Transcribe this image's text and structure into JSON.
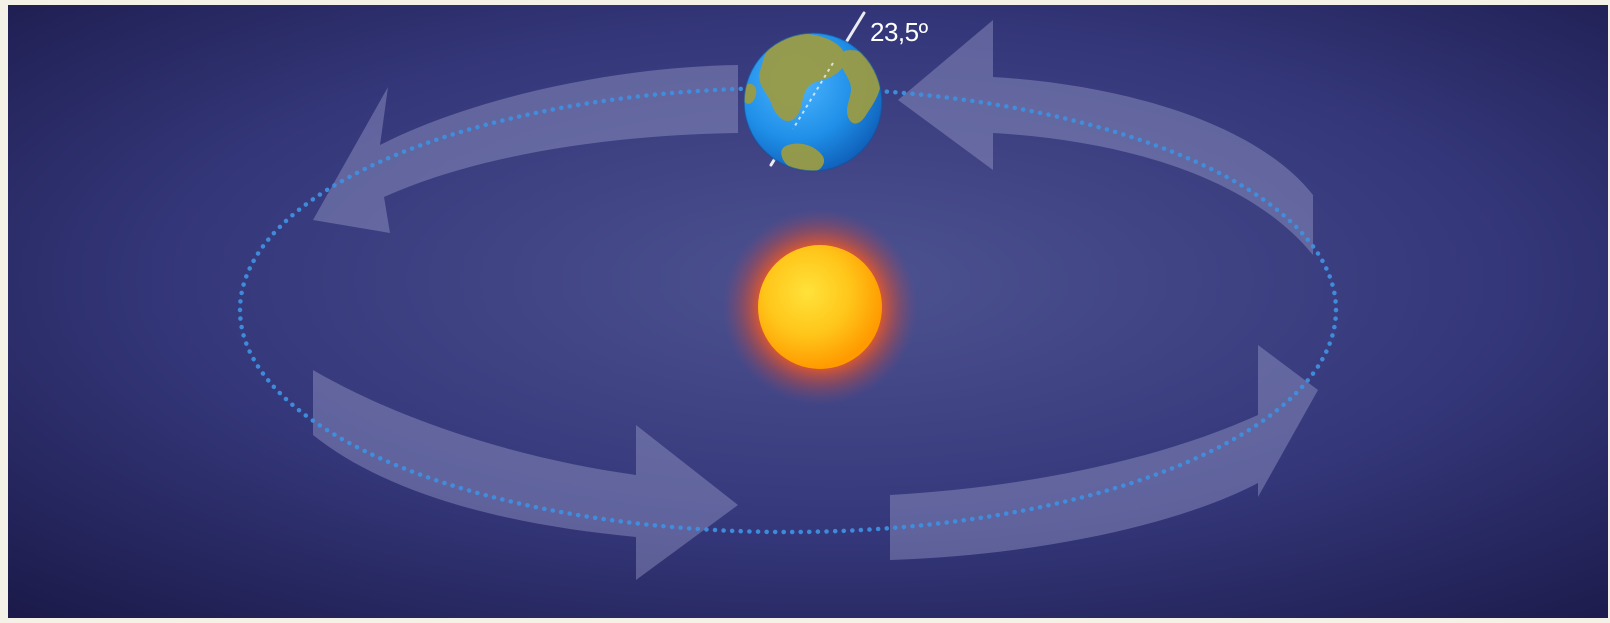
{
  "diagram": {
    "tilt_label": "23,5º",
    "colors": {
      "space_center": "#4a4f8a",
      "space_edge": "#1b1a4a",
      "orbit": "#3f8fe0",
      "arrow": "#8a8fbf",
      "sun_core": "#ffd21a",
      "sun_edge": "#ff8a00",
      "sun_glow": "#ff4a1a",
      "earth_ocean": "#1f8fe8",
      "earth_land": "#9a9b45",
      "axis": "#ffffff",
      "label": "#ffffff"
    },
    "icons": {
      "earth": "earth-icon",
      "sun": "sun-icon"
    }
  }
}
